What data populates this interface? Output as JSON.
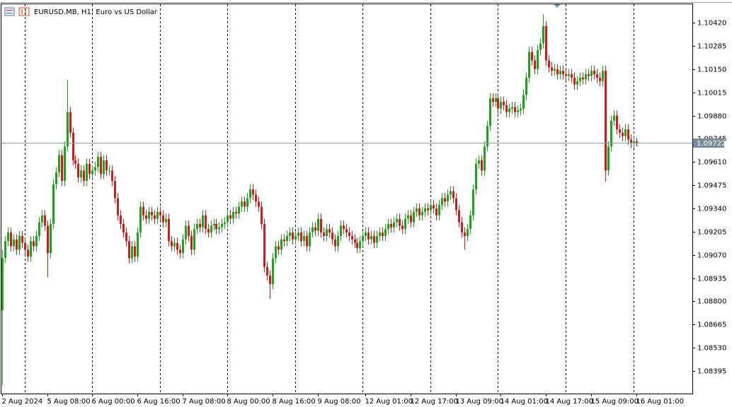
{
  "chart_data": {
    "type": "candlestick",
    "title": "EURUSD.MB, H1:  Euro vs US Dollar",
    "up_color": "#22a022",
    "down_color": "#c81e1e",
    "ylim": [
      1.08264,
      1.10531
    ],
    "yticks": [
      1.08395,
      {
        "value": 1.0853,
        "label": "1.08530"
      },
      1.08665,
      {
        "value": 1.088,
        "label": "1.08800"
      },
      1.08935,
      {
        "value": 1.0907,
        "label": "1.09070"
      },
      1.09205,
      {
        "value": 1.0934,
        "label": "1.09340"
      },
      1.09475,
      {
        "value": 1.0961,
        "label": "1.09610"
      },
      1.09745,
      {
        "value": 1.0988,
        "label": "1.09880"
      },
      1.10015,
      {
        "value": 1.1015,
        "label": "1.10150"
      },
      1.10285,
      {
        "value": 1.1042,
        "label": "1.10420"
      }
    ],
    "current_price": 1.09722,
    "xticks": [
      {
        "value": 0,
        "label": "2 Aug 2024"
      },
      {
        "value": 16,
        "label": "5 Aug 08:00"
      },
      {
        "value": 32,
        "label": "6 Aug 00:00"
      },
      {
        "value": 48,
        "label": "6 Aug 16:00"
      },
      {
        "value": 64,
        "label": "7 Aug 08:00"
      },
      {
        "value": 80,
        "label": "8 Aug 00:00"
      },
      {
        "value": 96,
        "label": "8 Aug 16:00"
      },
      {
        "value": 112,
        "label": "9 Aug 08:00"
      },
      {
        "value": 129,
        "label": "12 Aug 01:00"
      },
      {
        "value": 145,
        "label": "12 Aug 17:00"
      },
      {
        "value": 161,
        "label": "13 Aug 09:00"
      },
      {
        "value": 177,
        "label": "14 Aug 01:00"
      },
      {
        "value": 193,
        "label": "14 Aug 17:00"
      },
      {
        "value": 209,
        "label": "15 Aug 09:00"
      },
      {
        "value": 225,
        "label": "16 Aug 01:00"
      }
    ],
    "xgrid": [
      8,
      32,
      56,
      80,
      104,
      128,
      152,
      176,
      200,
      224
    ],
    "open": [
      1.0875,
      1.09052,
      1.0915,
      1.092,
      1.0912,
      1.0916,
      1.091,
      1.0918,
      1.0914,
      1.091,
      1.0906,
      1.0915,
      1.0912,
      1.0918,
      1.0926,
      1.093,
      1.0924,
      1.0908,
      1.0925,
      1.0948,
      1.0955,
      1.0965,
      1.095,
      1.097,
      1.099,
      1.0978,
      1.0962,
      1.096,
      1.0952,
      1.0956,
      1.095,
      1.096,
      1.0954,
      1.0956,
      1.0958,
      1.0964,
      1.0954,
      1.0962,
      1.0956,
      1.0956,
      1.095,
      1.094,
      1.093,
      1.0925,
      1.092,
      1.0915,
      1.0905,
      1.0912,
      1.0906,
      1.092,
      1.0935,
      1.093,
      1.0928,
      1.0932,
      1.093,
      1.0928,
      1.0932,
      1.093,
      1.0926,
      1.0928,
      1.0915,
      1.0912,
      1.0914,
      1.091,
      1.0908,
      1.0916,
      1.0924,
      1.0918,
      1.091,
      1.0922,
      1.0925,
      1.0923,
      1.093,
      1.0922,
      1.092,
      1.0924,
      1.0925,
      1.0922,
      1.0923,
      1.0925,
      1.0926,
      1.093,
      1.0928,
      1.0932,
      1.0931,
      1.0935,
      1.0938,
      1.0935,
      1.094,
      1.0945,
      1.0942,
      1.0938,
      1.0935,
      1.0925,
      1.09,
      1.0895,
      1.089,
      1.0905,
      1.0912,
      1.091,
      1.0916,
      1.0915,
      1.0918,
      1.092,
      1.0916,
      1.0918,
      1.092,
      1.0915,
      1.0918,
      1.0912,
      1.092,
      1.0923,
      1.0921,
      1.0928,
      1.092,
      1.0918,
      1.0922,
      1.092,
      1.0916,
      1.0912,
      1.0918,
      1.0924,
      1.0922,
      1.092,
      1.0918,
      1.0916,
      1.0914,
      1.0911,
      1.0915,
      1.0918,
      1.092,
      1.0916,
      1.0918,
      1.0914,
      1.0918,
      1.092,
      1.0918,
      1.0922,
      1.0925,
      1.0923,
      1.0926,
      1.0928,
      1.0924,
      1.0922,
      1.0928,
      1.093,
      1.0926,
      1.0932,
      1.0934,
      1.093,
      1.0932,
      1.0934,
      1.0933,
      1.0936,
      1.0934,
      1.093,
      1.0936,
      1.094,
      1.0938,
      1.0942,
      1.0944,
      1.094,
      1.0933,
      1.0926,
      1.092,
      1.0918,
      1.0922,
      1.093,
      1.0945,
      1.096,
      1.0962,
      1.0956,
      1.097,
      1.0982,
      1.0998,
      1.0996,
      1.0998,
      1.0992,
      1.0996,
      1.0994,
      1.099,
      1.0992,
      1.0993,
      1.099,
      1.0991,
      1.0992,
      1.1,
      1.101,
      1.1025,
      1.102,
      1.1015,
      1.1026,
      1.103,
      1.104,
      1.102,
      1.1016,
      1.1014,
      1.1015,
      1.1012,
      1.1014,
      1.1012,
      1.1011,
      1.1012,
      1.101,
      1.1006,
      1.1008,
      1.101,
      1.1009,
      1.1012,
      1.1011,
      1.1014,
      1.1012,
      1.101,
      1.1008,
      1.1014,
      1.0956,
      1.097,
      1.0985,
      1.0988,
      1.098,
      1.0978,
      1.0976,
      1.098,
      1.0974,
      1.0972,
      1.0973
    ],
    "high": [
      1.091,
      1.0918,
      1.0923,
      1.0923,
      1.0919,
      1.0919,
      1.0921,
      1.0921,
      1.0917,
      1.0913,
      1.0918,
      1.0918,
      1.0921,
      1.0929,
      1.0933,
      1.0933,
      1.0927,
      1.0928,
      1.0951,
      1.0958,
      1.0968,
      1.0968,
      1.0973,
      1.10087,
      1.0993,
      1.0981,
      1.0965,
      1.0963,
      1.0959,
      1.0959,
      1.0963,
      1.0963,
      1.0959,
      1.0961,
      1.0967,
      1.0967,
      1.0965,
      1.0965,
      1.0959,
      1.0959,
      1.0953,
      1.0943,
      1.0933,
      1.0928,
      1.0923,
      1.0918,
      1.0915,
      1.0915,
      1.0923,
      1.0938,
      1.0938,
      1.0933,
      1.0935,
      1.0935,
      1.0933,
      1.0935,
      1.0935,
      1.0933,
      1.0931,
      1.0931,
      1.0918,
      1.0917,
      1.0917,
      1.0913,
      1.0919,
      1.0927,
      1.0927,
      1.0921,
      1.0925,
      1.0928,
      1.0928,
      1.0933,
      1.0933,
      1.0925,
      1.0927,
      1.0928,
      1.0928,
      1.0926,
      1.0928,
      1.0929,
      1.0933,
      1.0933,
      1.0935,
      1.0935,
      1.0938,
      1.0941,
      1.0941,
      1.0943,
      1.0948,
      1.0948,
      1.0945,
      1.0941,
      1.0938,
      1.0928,
      1.0903,
      1.0898,
      1.0908,
      1.0915,
      1.0915,
      1.0919,
      1.0919,
      1.0921,
      1.0923,
      1.0923,
      1.0921,
      1.0923,
      1.0923,
      1.0921,
      1.0921,
      1.0923,
      1.0926,
      1.0926,
      1.0931,
      1.0931,
      1.0923,
      1.0925,
      1.0925,
      1.0923,
      1.0919,
      1.0921,
      1.0927,
      1.0927,
      1.0925,
      1.0923,
      1.0921,
      1.0919,
      1.0917,
      1.0918,
      1.0921,
      1.0923,
      1.0923,
      1.0921,
      1.0921,
      1.0921,
      1.0923,
      1.0923,
      1.0925,
      1.0928,
      1.0928,
      1.0929,
      1.0931,
      1.0931,
      1.0927,
      1.0931,
      1.0933,
      1.0933,
      1.0935,
      1.0937,
      1.0937,
      1.0935,
      1.0937,
      1.0937,
      1.0939,
      1.0939,
      1.0937,
      1.0939,
      1.0943,
      1.0943,
      1.0945,
      1.0947,
      1.0947,
      1.0943,
      1.0936,
      1.0929,
      1.0923,
      1.0925,
      1.0933,
      1.0948,
      1.0963,
      1.0965,
      1.0965,
      1.0973,
      1.0985,
      1.1001,
      1.1001,
      1.1001,
      1.1001,
      1.0999,
      1.0999,
      1.0997,
      1.0995,
      1.0996,
      1.0996,
      1.0994,
      1.0995,
      1.1003,
      1.1013,
      1.1028,
      1.1028,
      1.1023,
      1.1029,
      1.1033,
      1.10469,
      1.1043,
      1.1023,
      1.1019,
      1.1018,
      1.1018,
      1.1017,
      1.1017,
      1.1015,
      1.1015,
      1.1015,
      1.1013,
      1.1011,
      1.1013,
      1.1013,
      1.1015,
      1.1015,
      1.1017,
      1.1017,
      1.1015,
      1.1013,
      1.1017,
      1.1017,
      1.0973,
      1.0988,
      1.0991,
      1.0991,
      1.0983,
      1.0981,
      1.0983,
      1.0983,
      1.0977,
      1.0976,
      1.0975
    ],
    "low": [
      1.08313,
      1.09022,
      1.0912,
      1.0909,
      1.0909,
      1.0907,
      1.0907,
      1.0911,
      1.0907,
      1.0903,
      1.0903,
      1.0909,
      1.0909,
      1.0915,
      1.0923,
      1.0921,
      1.0894,
      1.0905,
      1.0922,
      1.0945,
      1.0952,
      1.0947,
      1.0947,
      1.0967,
      1.0975,
      1.0959,
      1.0957,
      1.0949,
      1.0949,
      1.0947,
      1.0947,
      1.0951,
      1.0951,
      1.0953,
      1.0955,
      1.0951,
      1.0951,
      1.0953,
      1.0953,
      1.0947,
      1.0937,
      1.0927,
      1.0922,
      1.0917,
      1.0912,
      1.0902,
      1.0902,
      1.0903,
      1.0903,
      1.0917,
      1.0927,
      1.0925,
      1.0925,
      1.0927,
      1.0925,
      1.0925,
      1.0927,
      1.0923,
      1.0923,
      1.0912,
      1.0909,
      1.0909,
      1.0907,
      1.0905,
      1.0905,
      1.0913,
      1.0915,
      1.0907,
      1.0907,
      1.0919,
      1.092,
      1.092,
      1.0919,
      1.0917,
      1.0917,
      1.0921,
      1.0919,
      1.0919,
      1.092,
      1.0922,
      1.0923,
      1.0925,
      1.0925,
      1.0928,
      1.0928,
      1.0932,
      1.0932,
      1.0932,
      1.0937,
      1.0939,
      1.0935,
      1.0932,
      1.0922,
      1.0897,
      1.0892,
      1.08814,
      1.0887,
      1.0902,
      1.0907,
      1.0907,
      1.0912,
      1.0912,
      1.0915,
      1.0913,
      1.0913,
      1.0915,
      1.0912,
      1.0912,
      1.0909,
      1.0909,
      1.0917,
      1.0918,
      1.0918,
      1.0917,
      1.0915,
      1.0915,
      1.0917,
      1.0913,
      1.0909,
      1.0909,
      1.0915,
      1.0919,
      1.0917,
      1.0915,
      1.0913,
      1.0911,
      1.0908,
      1.0908,
      1.0912,
      1.0915,
      1.0913,
      1.0913,
      1.0911,
      1.0911,
      1.0915,
      1.0915,
      1.0915,
      1.0919,
      1.092,
      1.092,
      1.0923,
      1.0921,
      1.0919,
      1.0919,
      1.0925,
      1.0923,
      1.0923,
      1.0929,
      1.0927,
      1.0927,
      1.0929,
      1.093,
      1.093,
      1.0931,
      1.0927,
      1.0927,
      1.0933,
      1.0935,
      1.0935,
      1.0939,
      1.0937,
      1.093,
      1.0923,
      1.0917,
      1.091,
      1.0915,
      1.0919,
      1.0927,
      1.0942,
      1.0957,
      1.0953,
      1.0953,
      1.0967,
      1.0979,
      1.0993,
      1.0993,
      1.0989,
      1.0989,
      1.0991,
      1.0987,
      1.0987,
      1.0989,
      1.0987,
      1.0987,
      1.0988,
      1.0989,
      1.0997,
      1.1007,
      1.1017,
      1.1012,
      1.1012,
      1.1023,
      1.1027,
      1.1017,
      1.1013,
      1.1011,
      1.1011,
      1.1009,
      1.1009,
      1.1009,
      1.1008,
      1.1008,
      1.1007,
      1.1003,
      1.1003,
      1.1005,
      1.1006,
      1.1006,
      1.1008,
      1.1008,
      1.1009,
      1.1007,
      1.1005,
      1.1005,
      1.09496,
      1.0953,
      1.0967,
      1.0982,
      1.0977,
      1.0975,
      1.0973,
      1.0973,
      1.0971,
      1.0969,
      1.0969,
      1.097
    ],
    "close": [
      1.09052,
      1.0915,
      1.092,
      1.0912,
      1.0916,
      1.091,
      1.0918,
      1.0914,
      1.091,
      1.0906,
      1.0915,
      1.0912,
      1.0918,
      1.0926,
      1.093,
      1.0924,
      1.0908,
      1.0925,
      1.0948,
      1.0955,
      1.0965,
      1.095,
      1.097,
      1.099,
      1.0978,
      1.0962,
      1.096,
      1.0952,
      1.0956,
      1.095,
      1.096,
      1.0954,
      1.0956,
      1.0958,
      1.0964,
      1.0954,
      1.0962,
      1.0956,
      1.0956,
      1.095,
      1.094,
      1.093,
      1.0925,
      1.092,
      1.0915,
      1.0905,
      1.0912,
      1.0906,
      1.092,
      1.0935,
      1.093,
      1.0928,
      1.0932,
      1.093,
      1.0928,
      1.0932,
      1.093,
      1.0926,
      1.0928,
      1.0915,
      1.0912,
      1.0914,
      1.091,
      1.0908,
      1.0916,
      1.0924,
      1.0918,
      1.091,
      1.0922,
      1.0925,
      1.0923,
      1.093,
      1.0922,
      1.092,
      1.0924,
      1.0925,
      1.0922,
      1.0923,
      1.0925,
      1.0926,
      1.093,
      1.0928,
      1.0932,
      1.0931,
      1.0935,
      1.0938,
      1.0935,
      1.094,
      1.0945,
      1.0942,
      1.0938,
      1.0935,
      1.0925,
      1.09,
      1.0895,
      1.089,
      1.0905,
      1.0912,
      1.091,
      1.0916,
      1.0915,
      1.0918,
      1.092,
      1.0916,
      1.0918,
      1.092,
      1.0915,
      1.0918,
      1.0912,
      1.092,
      1.0923,
      1.0921,
      1.0928,
      1.092,
      1.0918,
      1.0922,
      1.092,
      1.0916,
      1.0912,
      1.0918,
      1.0924,
      1.0922,
      1.092,
      1.0918,
      1.0916,
      1.0914,
      1.0911,
      1.0915,
      1.0918,
      1.092,
      1.0916,
      1.0918,
      1.0914,
      1.0918,
      1.092,
      1.0918,
      1.0922,
      1.0925,
      1.0923,
      1.0926,
      1.0928,
      1.0924,
      1.0922,
      1.0928,
      1.093,
      1.0926,
      1.0932,
      1.0934,
      1.093,
      1.0932,
      1.0934,
      1.0933,
      1.0936,
      1.0934,
      1.093,
      1.0936,
      1.094,
      1.0938,
      1.0942,
      1.0944,
      1.094,
      1.0933,
      1.0926,
      1.092,
      1.0918,
      1.0922,
      1.093,
      1.0945,
      1.096,
      1.0962,
      1.0956,
      1.097,
      1.0982,
      1.0998,
      1.0996,
      1.0998,
      1.0992,
      1.0996,
      1.0994,
      1.099,
      1.0992,
      1.0993,
      1.099,
      1.0991,
      1.0992,
      1.1,
      1.101,
      1.1025,
      1.102,
      1.1015,
      1.1026,
      1.103,
      1.104,
      1.102,
      1.1016,
      1.1014,
      1.1015,
      1.1012,
      1.1014,
      1.1012,
      1.1011,
      1.1012,
      1.101,
      1.1006,
      1.1008,
      1.101,
      1.1009,
      1.1012,
      1.1011,
      1.1014,
      1.1012,
      1.101,
      1.1008,
      1.1014,
      1.0956,
      1.097,
      1.0985,
      1.0988,
      1.098,
      1.0978,
      1.0976,
      1.098,
      1.0974,
      1.0972,
      1.0973,
      1.09722
    ]
  }
}
